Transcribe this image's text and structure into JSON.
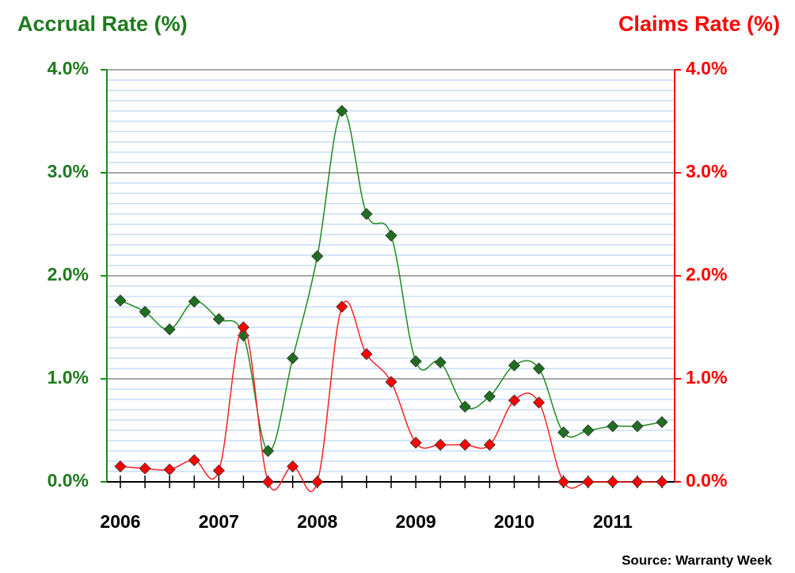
{
  "chart_data": {
    "type": "line",
    "y_label": "Accrual Rate (%)",
    "y2_label": "Claims Rate (%)",
    "source": "Source: Warranty Week",
    "categories": [
      "2006",
      null,
      null,
      null,
      "2007",
      null,
      null,
      null,
      "2008",
      null,
      null,
      null,
      "2009",
      null,
      null,
      null,
      "2010",
      null,
      null,
      null,
      "2011",
      null,
      null
    ],
    "series": [
      {
        "name": "Accrual Rate (%)",
        "color": "#1e8a1e",
        "marker_color": "#1f6e1f",
        "axis": "y",
        "values": [
          1.76,
          1.65,
          1.48,
          1.75,
          1.58,
          1.42,
          0.3,
          1.2,
          2.19,
          3.6,
          2.6,
          2.39,
          1.17,
          1.16,
          0.73,
          0.83,
          1.13,
          1.1,
          0.48,
          0.5,
          0.54,
          0.54,
          0.58
        ]
      },
      {
        "name": "Claims Rate (%)",
        "color": "#ff2020",
        "marker_color": "#ff0000",
        "axis": "y2",
        "values": [
          0.15,
          0.13,
          0.12,
          0.21,
          0.11,
          1.5,
          0.0,
          0.15,
          0.0,
          1.7,
          1.24,
          0.97,
          0.38,
          0.36,
          0.36,
          0.36,
          0.79,
          0.77,
          0.0,
          0.0,
          0.0,
          0.0,
          0.0
        ]
      }
    ],
    "ylim": [
      0,
      4
    ],
    "yticks": [
      {
        "value": 0,
        "label": "0.0%"
      },
      {
        "value": 1,
        "label": "1.0%"
      },
      {
        "value": 2,
        "label": "2.0%"
      },
      {
        "value": 3,
        "label": "3.0%"
      },
      {
        "value": 4,
        "label": "4.0%"
      }
    ],
    "y2lim": [
      0,
      4
    ],
    "y2ticks": [
      {
        "value": 0,
        "label": "0.0%"
      },
      {
        "value": 1,
        "label": "1.0%"
      },
      {
        "value": 2,
        "label": "2.0%"
      },
      {
        "value": 3,
        "label": "3.0%"
      },
      {
        "value": 4,
        "label": "4.0%"
      }
    ],
    "y_minor_ticks": [
      0.1,
      0.2,
      0.3,
      0.4,
      0.5,
      0.6,
      0.7,
      0.8,
      0.9,
      1.1,
      1.2,
      1.3,
      1.4,
      1.5,
      1.6,
      1.7,
      1.8,
      1.9,
      2.1,
      2.2,
      2.3,
      2.4,
      2.5,
      2.6,
      2.7,
      2.8,
      2.9,
      3.1,
      3.2,
      3.3,
      3.4,
      3.5,
      3.6,
      3.7,
      3.8,
      3.9
    ],
    "grid": true
  }
}
